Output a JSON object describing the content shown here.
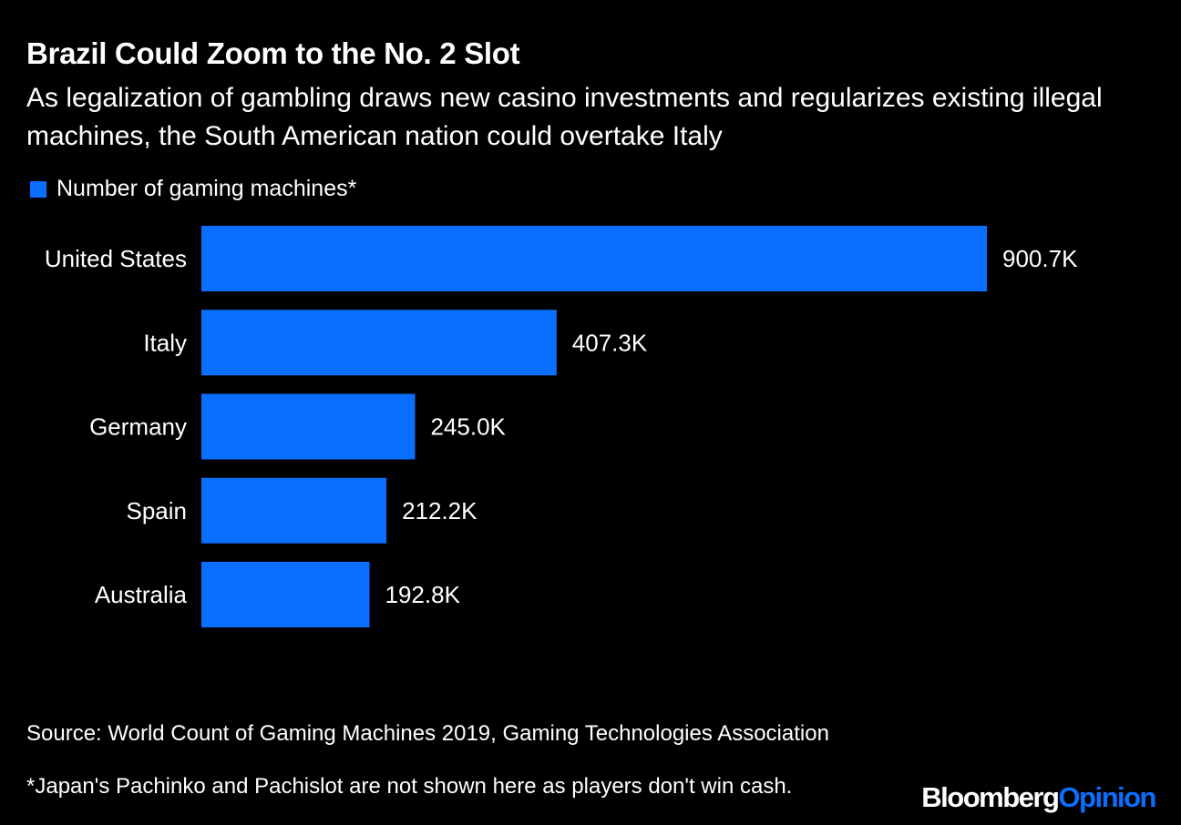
{
  "title": "Brazil Could Zoom to the No. 2 Slot",
  "subtitle": "As legalization of gambling draws new casino investments and regularizes existing illegal machines, the South American nation could overtake Italy",
  "legend": {
    "label": "Number of gaming machines*",
    "color": "#0a6eff"
  },
  "chart_data": {
    "type": "bar",
    "orientation": "horizontal",
    "categories": [
      "United States",
      "Italy",
      "Germany",
      "Spain",
      "Australia"
    ],
    "values": [
      900.7,
      407.3,
      245.0,
      212.2,
      192.8
    ],
    "value_labels": [
      "900.7K",
      "407.3K",
      "245.0K",
      "212.2K",
      "192.8K"
    ],
    "unit": "K",
    "series": [
      {
        "name": "Number of gaming machines*",
        "values": [
          900.7,
          407.3,
          245.0,
          212.2,
          192.8
        ]
      }
    ],
    "xlim": [
      0,
      900.7
    ],
    "grid": false,
    "legend_position": "top-left",
    "bar_color": "#0a6eff"
  },
  "footer": {
    "source": "Source: World Count of Gaming Machines 2019, Gaming Technologies Association",
    "note": "*Japan's Pachinko and Pachislot are not shown here as players don't win cash."
  },
  "logo": {
    "part1": "Bloomberg",
    "part2": "Opinion",
    "part2_color": "#0a6eff"
  }
}
